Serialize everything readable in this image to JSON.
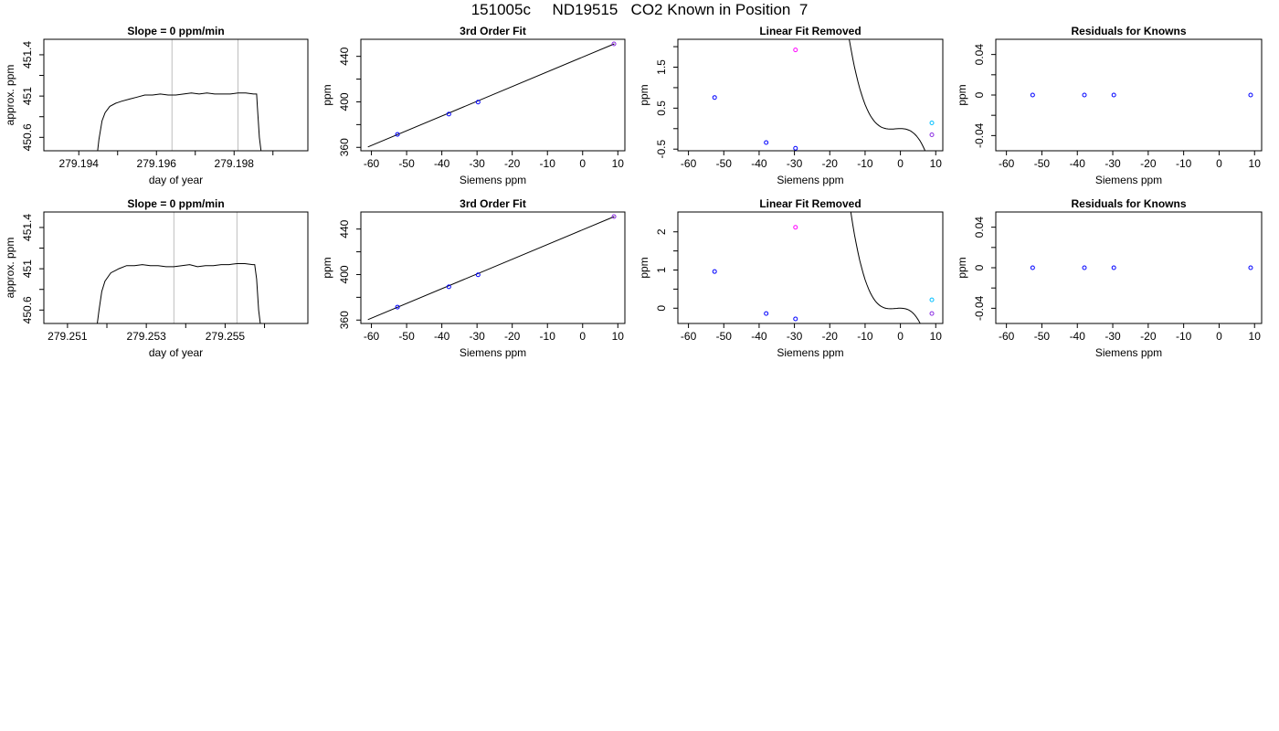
{
  "page": {
    "title": "151005c     ND19515   CO2 Known in Position  7"
  },
  "chart_data": [
    {
      "id": "r1-trace",
      "type": "line",
      "title": "Slope =  0  ppm/min",
      "xlabel": "day of year",
      "ylabel": "approx. ppm",
      "xlim": [
        279.1931,
        279.1999
      ],
      "ylim": [
        450.47,
        451.55
      ],
      "xticks": [
        279.194,
        279.196,
        279.198
      ],
      "minor_xticks": [
        279.195,
        279.197,
        279.199
      ],
      "yticks": [
        450.6,
        451.0,
        451.4
      ],
      "minor_yticks": [
        450.8,
        451.2
      ],
      "vlines": [
        279.1964,
        279.1981
      ],
      "x": [
        279.19448,
        279.19452,
        279.1946,
        279.19468,
        279.1948,
        279.19495,
        279.1951,
        279.1953,
        279.1955,
        279.1957,
        279.1959,
        279.1961,
        279.1963,
        279.1965,
        279.1967,
        279.1969,
        279.1971,
        279.1973,
        279.1975,
        279.1977,
        279.1979,
        279.1981,
        279.1983,
        279.1985,
        279.19858,
        279.1986,
        279.19865,
        279.1987
      ],
      "y": [
        450.45,
        450.58,
        450.76,
        450.84,
        450.9,
        450.93,
        450.95,
        450.97,
        450.99,
        451.01,
        451.01,
        451.02,
        451.01,
        451.01,
        451.02,
        451.03,
        451.02,
        451.03,
        451.02,
        451.02,
        451.02,
        451.03,
        451.03,
        451.02,
        451.02,
        450.9,
        450.6,
        450.45
      ]
    },
    {
      "id": "r1-fit",
      "type": "scatter",
      "title": "3rd Order Fit",
      "xlabel": "Siemens ppm",
      "ylabel": "ppm",
      "xlim": [
        -63,
        12
      ],
      "ylim": [
        357,
        455
      ],
      "xticks": [
        -60,
        -50,
        -40,
        -30,
        -20,
        -10,
        0,
        10
      ],
      "yticks": [
        360,
        400,
        440
      ],
      "minor_yticks": [
        380,
        420
      ],
      "curve": {
        "x": [
          -61,
          9
        ],
        "y": [
          360.4,
          451.0
        ]
      },
      "points": [
        {
          "x": -52.6,
          "y": 371.4,
          "color": "#0000ff"
        },
        {
          "x": -38.0,
          "y": 389.2,
          "color": "#0000ff"
        },
        {
          "x": -29.7,
          "y": 399.8,
          "color": "#0000ff"
        },
        {
          "x": 8.9,
          "y": 451.0,
          "color": "#8a2be2"
        }
      ]
    },
    {
      "id": "r1-lin",
      "type": "scatter",
      "title": "Linear Fit Removed",
      "xlabel": "Siemens ppm",
      "ylabel": "ppm",
      "xlim": [
        -63,
        12
      ],
      "ylim": [
        -0.54,
        2.18
      ],
      "xticks": [
        -60,
        -50,
        -40,
        -30,
        -20,
        -10,
        0,
        10
      ],
      "yticks": [
        -0.5,
        0.5,
        1.5
      ],
      "minor_yticks": [
        0.0,
        1.0,
        2.0
      ],
      "curve_coeffs": [
        0.0,
        -0.0041,
        -0.001
      ],
      "points": [
        {
          "x": -52.6,
          "y": 0.76,
          "color": "#0000ff"
        },
        {
          "x": -38.0,
          "y": -0.34,
          "color": "#0000ff"
        },
        {
          "x": -29.7,
          "y": -0.48,
          "color": "#0000ff"
        },
        {
          "x": -29.7,
          "y": 1.92,
          "color": "#ff00ff"
        },
        {
          "x": 8.9,
          "y": 0.14,
          "color": "#00bfff"
        },
        {
          "x": 8.9,
          "y": -0.15,
          "color": "#8a2be2"
        }
      ]
    },
    {
      "id": "r1-res",
      "type": "scatter",
      "title": "Residuals for Knowns",
      "xlabel": "Siemens ppm",
      "ylabel": "ppm",
      "xlim": [
        -63,
        12
      ],
      "ylim": [
        -0.055,
        0.055
      ],
      "xticks": [
        -60,
        -50,
        -40,
        -30,
        -20,
        -10,
        0,
        10
      ],
      "yticks": [
        -0.04,
        0.0,
        0.04
      ],
      "minor_yticks": [
        -0.02,
        0.02
      ],
      "points": [
        {
          "x": -52.6,
          "y": 0,
          "color": "#0000ff"
        },
        {
          "x": -38.0,
          "y": 0,
          "color": "#0000ff"
        },
        {
          "x": -29.7,
          "y": 0,
          "color": "#0000ff"
        },
        {
          "x": 8.9,
          "y": 0,
          "color": "#0000ff"
        }
      ]
    },
    {
      "id": "r2-trace",
      "type": "line",
      "title": "Slope =  0  ppm/min",
      "xlabel": "day of year",
      "ylabel": "approx. ppm",
      "xlim": [
        279.2504,
        279.2571
      ],
      "ylim": [
        450.47,
        451.55
      ],
      "xticks": [
        279.251,
        279.253,
        279.255
      ],
      "minor_xticks": [
        279.252,
        279.254,
        279.256
      ],
      "yticks": [
        450.6,
        451.0,
        451.4
      ],
      "minor_yticks": [
        450.8,
        451.2
      ],
      "vlines": [
        279.2537,
        279.2553
      ],
      "x": [
        279.25175,
        279.2518,
        279.25187,
        279.25195,
        279.2521,
        279.2523,
        279.2525,
        279.2527,
        279.2529,
        279.2531,
        279.2533,
        279.2535,
        279.2537,
        279.2539,
        279.2541,
        279.2543,
        279.2545,
        279.2547,
        279.2549,
        279.2551,
        279.2553,
        279.2555,
        279.2557,
        279.25575,
        279.2558,
        279.25585,
        279.2559
      ],
      "y": [
        450.45,
        450.6,
        450.78,
        450.88,
        450.96,
        451.0,
        451.03,
        451.03,
        451.04,
        451.03,
        451.03,
        451.02,
        451.02,
        451.03,
        451.04,
        451.02,
        451.03,
        451.03,
        451.04,
        451.04,
        451.05,
        451.05,
        451.04,
        451.04,
        450.9,
        450.6,
        450.45
      ]
    },
    {
      "id": "r2-fit",
      "type": "scatter",
      "title": "3rd Order Fit",
      "xlabel": "Siemens ppm",
      "ylabel": "ppm",
      "xlim": [
        -63,
        12
      ],
      "ylim": [
        357,
        455
      ],
      "xticks": [
        -60,
        -50,
        -40,
        -30,
        -20,
        -10,
        0,
        10
      ],
      "yticks": [
        360,
        400,
        440
      ],
      "minor_yticks": [
        380,
        420
      ],
      "curve": {
        "x": [
          -61,
          9
        ],
        "y": [
          360.4,
          451.0
        ]
      },
      "points": [
        {
          "x": -52.6,
          "y": 371.4,
          "color": "#0000ff"
        },
        {
          "x": -38.0,
          "y": 389.2,
          "color": "#0000ff"
        },
        {
          "x": -29.7,
          "y": 399.8,
          "color": "#0000ff"
        },
        {
          "x": 8.9,
          "y": 451.0,
          "color": "#8a2be2"
        }
      ]
    },
    {
      "id": "r2-lin",
      "type": "scatter",
      "title": "Linear Fit Removed",
      "xlabel": "Siemens ppm",
      "ylabel": "ppm",
      "xlim": [
        -63,
        12
      ],
      "ylim": [
        -0.4,
        2.52
      ],
      "xticks": [
        -60,
        -50,
        -40,
        -30,
        -20,
        -10,
        0,
        10
      ],
      "yticks": [
        0.0,
        1.0,
        2.0
      ],
      "minor_yticks": [
        0.5,
        1.5
      ],
      "curve_coeffs": [
        0.0,
        -0.0055,
        -0.0013
      ],
      "points": [
        {
          "x": -52.6,
          "y": 0.96,
          "color": "#0000ff"
        },
        {
          "x": -38.0,
          "y": -0.14,
          "color": "#0000ff"
        },
        {
          "x": -29.7,
          "y": -0.28,
          "color": "#0000ff"
        },
        {
          "x": -29.7,
          "y": 2.12,
          "color": "#ff00ff"
        },
        {
          "x": 8.9,
          "y": 0.22,
          "color": "#00bfff"
        },
        {
          "x": 8.9,
          "y": -0.14,
          "color": "#8a2be2"
        }
      ]
    },
    {
      "id": "r2-res",
      "type": "scatter",
      "title": "Residuals for Knowns",
      "xlabel": "Siemens ppm",
      "ylabel": "ppm",
      "xlim": [
        -63,
        12
      ],
      "ylim": [
        -0.055,
        0.055
      ],
      "xticks": [
        -60,
        -50,
        -40,
        -30,
        -20,
        -10,
        0,
        10
      ],
      "yticks": [
        -0.04,
        0.0,
        0.04
      ],
      "minor_yticks": [
        -0.02,
        0.02
      ],
      "points": [
        {
          "x": -52.6,
          "y": 0,
          "color": "#0000ff"
        },
        {
          "x": -38.0,
          "y": 0,
          "color": "#0000ff"
        },
        {
          "x": -29.7,
          "y": 0,
          "color": "#0000ff"
        },
        {
          "x": 8.9,
          "y": 0,
          "color": "#0000ff"
        }
      ]
    }
  ]
}
